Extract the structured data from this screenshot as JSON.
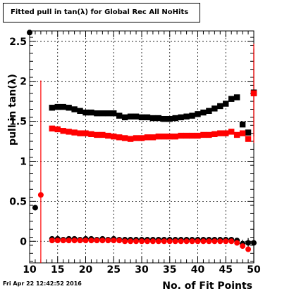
{
  "title_prefix": "Fitted pull in tan(",
  "title_lambda": "λ",
  "title_suffix": ") for Global Rec All NoHits",
  "footer": "Fri Apr 22 12:42:52 2016",
  "chart_data": {
    "type": "scatter",
    "title": "Fitted pull in tan(λ) for Global Rec All NoHits",
    "xlabel": "No. of Fit Points",
    "ylabel": "pull in tan(λ)",
    "xlim": [
      10,
      50
    ],
    "ylim": [
      -0.27,
      2.63
    ],
    "grid": true,
    "xticks": [
      10,
      15,
      20,
      25,
      30,
      35,
      40,
      45,
      50
    ],
    "yticks": [
      0,
      0.5,
      1,
      1.5,
      2,
      2.5
    ],
    "ytick_labels": [
      "0",
      "0.5",
      "1",
      "1.5",
      "2",
      "2.5"
    ],
    "series": [
      {
        "color": "#000000",
        "marker": "circle",
        "x": [
          10,
          11
        ],
        "y": [
          2.61,
          0.42
        ],
        "err": [
          0,
          0
        ]
      },
      {
        "color": "#ff0000",
        "marker": "circle",
        "x": [
          12
        ],
        "y": [
          0.58
        ],
        "err": [
          1.43
        ]
      },
      {
        "color": "#000000",
        "marker": "square",
        "x": [
          14,
          15,
          16,
          17,
          18,
          19,
          20,
          21,
          22,
          23,
          24,
          25,
          26,
          27,
          28,
          29,
          30,
          31,
          32,
          33,
          34,
          35,
          36,
          37,
          38,
          39,
          40,
          41,
          42,
          43,
          44,
          45,
          46,
          47,
          48,
          49,
          50
        ],
        "y": [
          1.67,
          1.68,
          1.68,
          1.67,
          1.65,
          1.63,
          1.61,
          1.61,
          1.6,
          1.6,
          1.6,
          1.6,
          1.57,
          1.55,
          1.56,
          1.56,
          1.55,
          1.55,
          1.54,
          1.54,
          1.53,
          1.53,
          1.54,
          1.55,
          1.56,
          1.57,
          1.59,
          1.61,
          1.63,
          1.66,
          1.69,
          1.72,
          1.78,
          1.8,
          1.46,
          1.36,
          1.86
        ],
        "err": [
          0,
          0,
          0,
          0,
          0,
          0,
          0,
          0,
          0,
          0,
          0,
          0,
          0,
          0,
          0,
          0,
          0,
          0,
          0,
          0,
          0,
          0,
          0,
          0,
          0,
          0,
          0,
          0,
          0,
          0,
          0,
          0,
          0,
          0,
          0,
          0,
          0.55
        ]
      },
      {
        "color": "#ff0000",
        "marker": "square",
        "x": [
          14,
          15,
          16,
          17,
          18,
          19,
          20,
          21,
          22,
          23,
          24,
          25,
          26,
          27,
          28,
          29,
          30,
          31,
          32,
          33,
          34,
          35,
          36,
          37,
          38,
          39,
          40,
          41,
          42,
          43,
          44,
          45,
          46,
          47,
          48,
          49,
          50
        ],
        "y": [
          1.41,
          1.4,
          1.38,
          1.37,
          1.36,
          1.35,
          1.35,
          1.34,
          1.33,
          1.33,
          1.32,
          1.31,
          1.3,
          1.29,
          1.28,
          1.29,
          1.29,
          1.3,
          1.3,
          1.31,
          1.31,
          1.31,
          1.31,
          1.32,
          1.32,
          1.32,
          1.32,
          1.33,
          1.33,
          1.34,
          1.35,
          1.35,
          1.37,
          1.33,
          1.35,
          1.28,
          1.85
        ],
        "err": [
          0,
          0,
          0,
          0,
          0,
          0,
          0,
          0,
          0,
          0,
          0,
          0,
          0,
          0,
          0,
          0,
          0,
          0,
          0,
          0,
          0,
          0,
          0,
          0,
          0,
          0,
          0,
          0,
          0,
          0,
          0,
          0,
          0,
          0,
          0,
          0,
          0.62
        ]
      },
      {
        "color": "#000000",
        "marker": "circle",
        "x": [
          14,
          15,
          16,
          17,
          18,
          19,
          20,
          21,
          22,
          23,
          24,
          25,
          26,
          27,
          28,
          29,
          30,
          31,
          32,
          33,
          34,
          35,
          36,
          37,
          38,
          39,
          40,
          41,
          42,
          43,
          44,
          45,
          46,
          47,
          48,
          49,
          50
        ],
        "y": [
          0.03,
          0.03,
          0.02,
          0.03,
          0.03,
          0.02,
          0.03,
          0.03,
          0.02,
          0.03,
          0.02,
          0.03,
          0.02,
          0.02,
          0.02,
          0.02,
          0.02,
          0.02,
          0.02,
          0.02,
          0.02,
          0.02,
          0.02,
          0.02,
          0.02,
          0.02,
          0.02,
          0.02,
          0.02,
          0.02,
          0.02,
          0.02,
          0.02,
          0.01,
          -0.03,
          -0.02,
          -0.02
        ],
        "err": [
          0,
          0,
          0,
          0,
          0,
          0,
          0,
          0,
          0,
          0,
          0,
          0,
          0,
          0,
          0,
          0,
          0,
          0,
          0,
          0,
          0,
          0,
          0,
          0,
          0,
          0,
          0,
          0,
          0,
          0,
          0,
          0,
          0,
          0,
          0.05,
          0.06,
          0.26
        ]
      },
      {
        "color": "#ff0000",
        "marker": "circle",
        "x": [
          14,
          15,
          16,
          17,
          18,
          19,
          20,
          21,
          22,
          23,
          24,
          25,
          26,
          27,
          28,
          29,
          30,
          31,
          32,
          33,
          34,
          35,
          36,
          37,
          38,
          39,
          40,
          41,
          42,
          43,
          44,
          45,
          46,
          47,
          48,
          49
        ],
        "y": [
          0.01,
          0.01,
          0.01,
          0.01,
          0.01,
          0.01,
          0.01,
          0.01,
          0.01,
          0.01,
          0.01,
          0.01,
          0.01,
          0.0,
          0.0,
          0.0,
          0.0,
          0.0,
          0.0,
          0.0,
          0.0,
          0.0,
          0.0,
          0.0,
          0.0,
          0.0,
          0.0,
          0.0,
          0.0,
          0.0,
          0.0,
          0.0,
          0.0,
          -0.02,
          -0.06,
          -0.1
        ],
        "err": [
          0,
          0,
          0,
          0,
          0,
          0,
          0,
          0,
          0,
          0,
          0,
          0,
          0,
          0,
          0,
          0,
          0,
          0,
          0,
          0,
          0,
          0,
          0,
          0,
          0,
          0,
          0,
          0,
          0,
          0,
          0,
          0,
          0,
          0,
          0,
          0
        ]
      }
    ]
  }
}
